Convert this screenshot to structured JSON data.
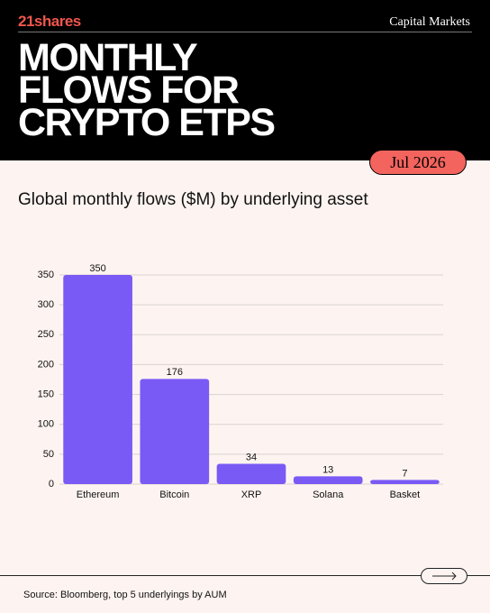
{
  "header": {
    "logo": "21shares",
    "section": "Capital Markets",
    "title_lines": [
      "MONTHLY",
      "FLOWS FOR",
      "CRYPTO ETPS"
    ],
    "date": "Jul 2026"
  },
  "chart_data": {
    "type": "bar",
    "title": "Global monthly flows ($M) by underlying asset",
    "categories": [
      "Ethereum",
      "Bitcoin",
      "XRP",
      "Solana",
      "Basket"
    ],
    "values": [
      350,
      176,
      34,
      13,
      7
    ],
    "color": "#7a5af5",
    "ylim": [
      0,
      350
    ],
    "yticks": [
      0,
      50,
      100,
      150,
      200,
      250,
      300,
      350
    ],
    "grid": true
  },
  "footer": {
    "source": "Source: Bloomberg, top 5 underlyings by AUM"
  }
}
